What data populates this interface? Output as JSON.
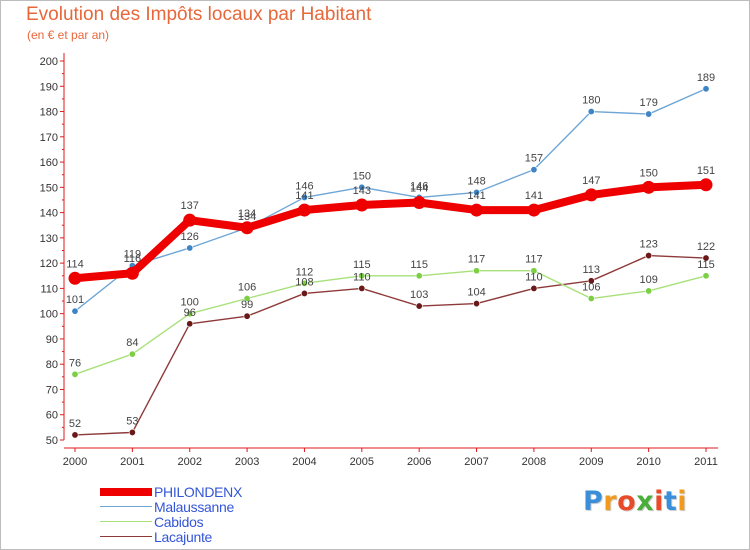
{
  "chart_data": {
    "type": "line",
    "title": "Evolution des Impôts locaux par Habitant",
    "subtitle": "(en € et par an)",
    "x": [
      "2000",
      "2001",
      "2002",
      "2003",
      "2004",
      "2005",
      "2006",
      "2007",
      "2008",
      "2009",
      "2010",
      "2011"
    ],
    "ylim": [
      50,
      200
    ],
    "yticks": [
      50,
      60,
      70,
      80,
      90,
      100,
      110,
      120,
      130,
      140,
      150,
      160,
      170,
      180,
      190,
      200
    ],
    "grid": false,
    "series": [
      {
        "name": "PHILONDENX",
        "color": "#ee0000",
        "emphasis": true,
        "values": [
          114,
          116,
          137,
          134,
          141,
          143,
          144,
          141,
          141,
          147,
          150,
          151
        ],
        "labels": [
          "114",
          "116",
          "137",
          "134",
          "141",
          "143",
          "144",
          "141",
          "141",
          "147",
          "150",
          "151"
        ]
      },
      {
        "name": "Malaussanne",
        "color": "#6fa6d6",
        "dot": "#3f84c4",
        "values": [
          101,
          119,
          126,
          134,
          146,
          150,
          146,
          148,
          157,
          180,
          179,
          189
        ],
        "labels": [
          "101",
          "119",
          "126",
          "134",
          "146",
          "150",
          "146",
          "148",
          "157",
          "180",
          "179",
          "189"
        ]
      },
      {
        "name": "Cabidos",
        "color": "#a8e07a",
        "dot": "#7ccf45",
        "values": [
          76,
          84,
          100,
          106,
          112,
          115,
          115,
          117,
          117,
          106,
          109,
          115
        ],
        "labels": [
          "76",
          "84",
          "100",
          "106",
          "112",
          "115",
          "115",
          "117",
          "117",
          "106",
          "109",
          "115"
        ]
      },
      {
        "name": "Lacajunte",
        "color": "#8e3a3a",
        "dot": "#6a1818",
        "values": [
          52,
          53,
          96,
          99,
          108,
          110,
          103,
          104,
          110,
          113,
          123,
          122
        ],
        "labels": [
          "52",
          "53",
          "96",
          "99",
          "108",
          "110",
          "103",
          "104",
          "110",
          "113",
          "123",
          "122"
        ]
      }
    ]
  },
  "brand": {
    "name": "Proxiti",
    "letters": [
      "P",
      "r",
      "o",
      "x",
      "i",
      "t",
      "i"
    ],
    "colors": [
      "#3a8fd8",
      "#f29a1e",
      "#e84b2a",
      "#4aae3a",
      "#e84b2a",
      "#3a8fd8",
      "#f29a1e"
    ]
  }
}
